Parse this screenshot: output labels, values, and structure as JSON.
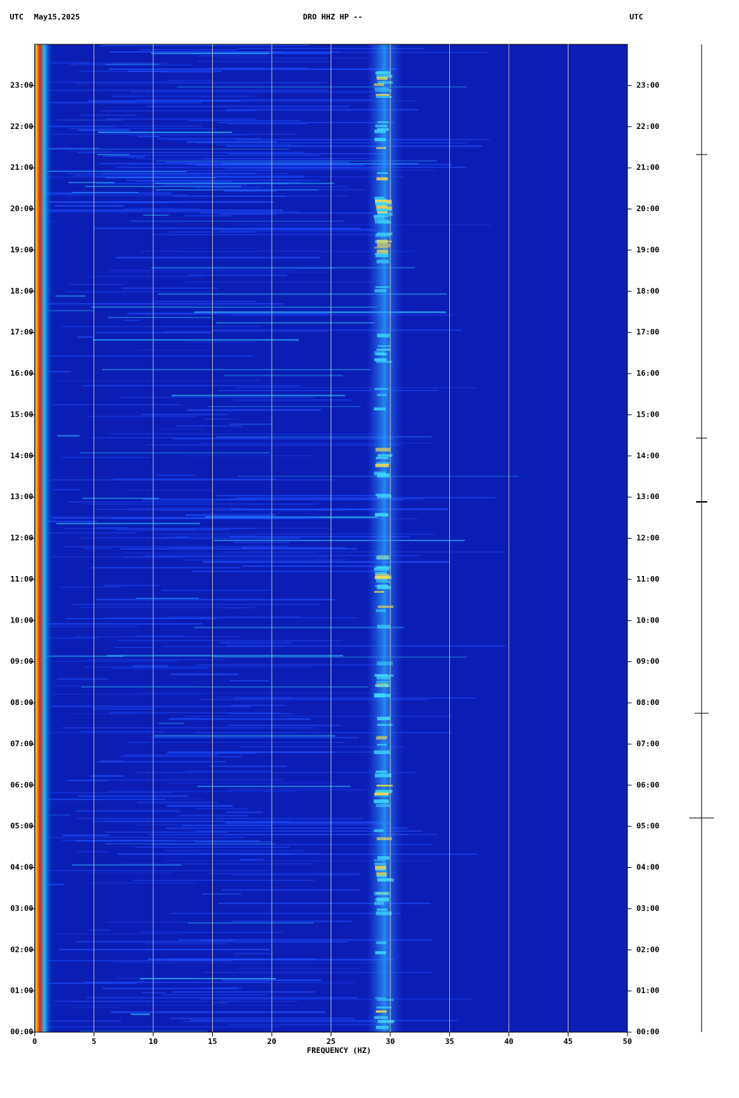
{
  "chart_data": {
    "type": "spectrogram",
    "title": "DRO HHZ HP --",
    "left_header": "UTC",
    "date": "May15,2025",
    "right_header": "UTC",
    "xlabel": "FREQUENCY (HZ)",
    "xlim": [
      0,
      50
    ],
    "xticks": [
      0,
      5,
      10,
      15,
      20,
      25,
      30,
      35,
      40,
      45,
      50
    ],
    "ylim": [
      0,
      24
    ],
    "yticks": [
      {
        "value": 0,
        "label": "00:00"
      },
      {
        "value": 1,
        "label": "01:00"
      },
      {
        "value": 2,
        "label": "02:00"
      },
      {
        "value": 3,
        "label": "03:00"
      },
      {
        "value": 4,
        "label": "04:00"
      },
      {
        "value": 5,
        "label": "05:00"
      },
      {
        "value": 6,
        "label": "06:00"
      },
      {
        "value": 7,
        "label": "07:00"
      },
      {
        "value": 8,
        "label": "08:00"
      },
      {
        "value": 9,
        "label": "09:00"
      },
      {
        "value": 10,
        "label": "10:00"
      },
      {
        "value": 11,
        "label": "11:00"
      },
      {
        "value": 12,
        "label": "12:00"
      },
      {
        "value": 13,
        "label": "13:00"
      },
      {
        "value": 14,
        "label": "14:00"
      },
      {
        "value": 15,
        "label": "15:00"
      },
      {
        "value": 16,
        "label": "16:00"
      },
      {
        "value": 17,
        "label": "17:00"
      },
      {
        "value": 18,
        "label": "18:00"
      },
      {
        "value": 19,
        "label": "19:00"
      },
      {
        "value": 20,
        "label": "20:00"
      },
      {
        "value": 21,
        "label": "21:00"
      },
      {
        "value": 22,
        "label": "22:00"
      },
      {
        "value": 23,
        "label": "23:00"
      }
    ],
    "grid": true,
    "grid_color": "#b8b8a8",
    "background_color": "#0a1eb4"
  }
}
